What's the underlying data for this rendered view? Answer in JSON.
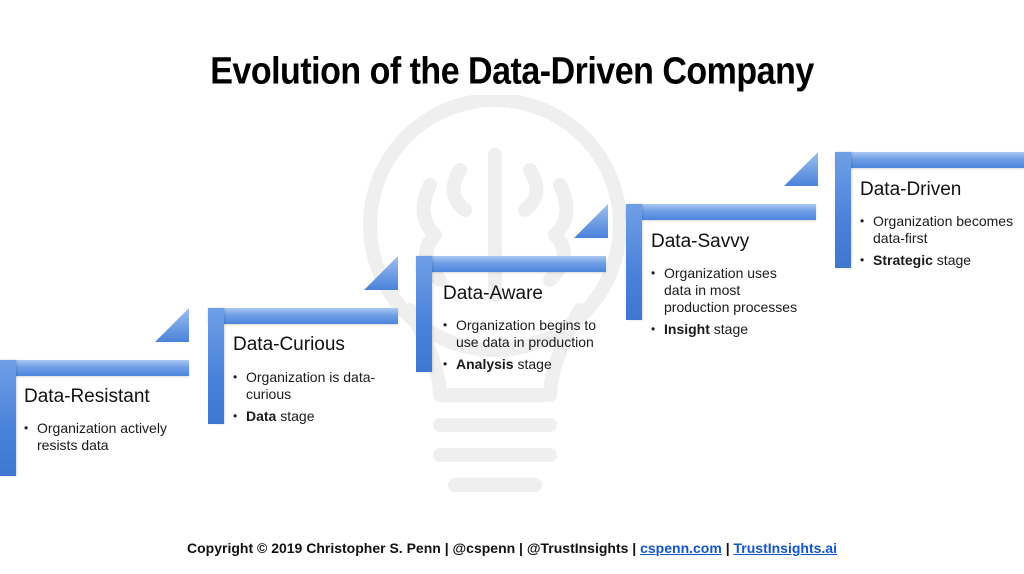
{
  "title": "Evolution of the Data-Driven Company",
  "stages": [
    {
      "name": "Data-Resistant",
      "bullets": [
        {
          "text": "Organization actively resists data"
        }
      ]
    },
    {
      "name": "Data-Curious",
      "bullets": [
        {
          "text": "Organization is data-curious"
        },
        {
          "bold": "Data",
          "rest": " stage"
        }
      ]
    },
    {
      "name": "Data-Aware",
      "bullets": [
        {
          "text": "Organization begins to use data in production"
        },
        {
          "bold": "Analysis",
          "rest": " stage"
        }
      ]
    },
    {
      "name": "Data-Savvy",
      "bullets": [
        {
          "text": "Organization uses data in most production processes"
        },
        {
          "bold": "Insight",
          "rest": " stage"
        }
      ]
    },
    {
      "name": "Data-Driven",
      "bullets": [
        {
          "text": "Organization becomes data-first"
        },
        {
          "bold": "Strategic",
          "rest": " stage"
        }
      ]
    }
  ],
  "footer": {
    "text": "Copyright © 2019 Christopher S. Penn | @cspenn | @TrustInsights | ",
    "link1": "cspenn.com",
    "sep": " | ",
    "link2": "TrustInsights.ai"
  },
  "colors": {
    "bar": "#4c84dc",
    "bar_light": "#aac8f3",
    "link": "#1155cc",
    "watermark": "#f2f2f2"
  },
  "watermark_icon": "brain-lightbulb-icon"
}
